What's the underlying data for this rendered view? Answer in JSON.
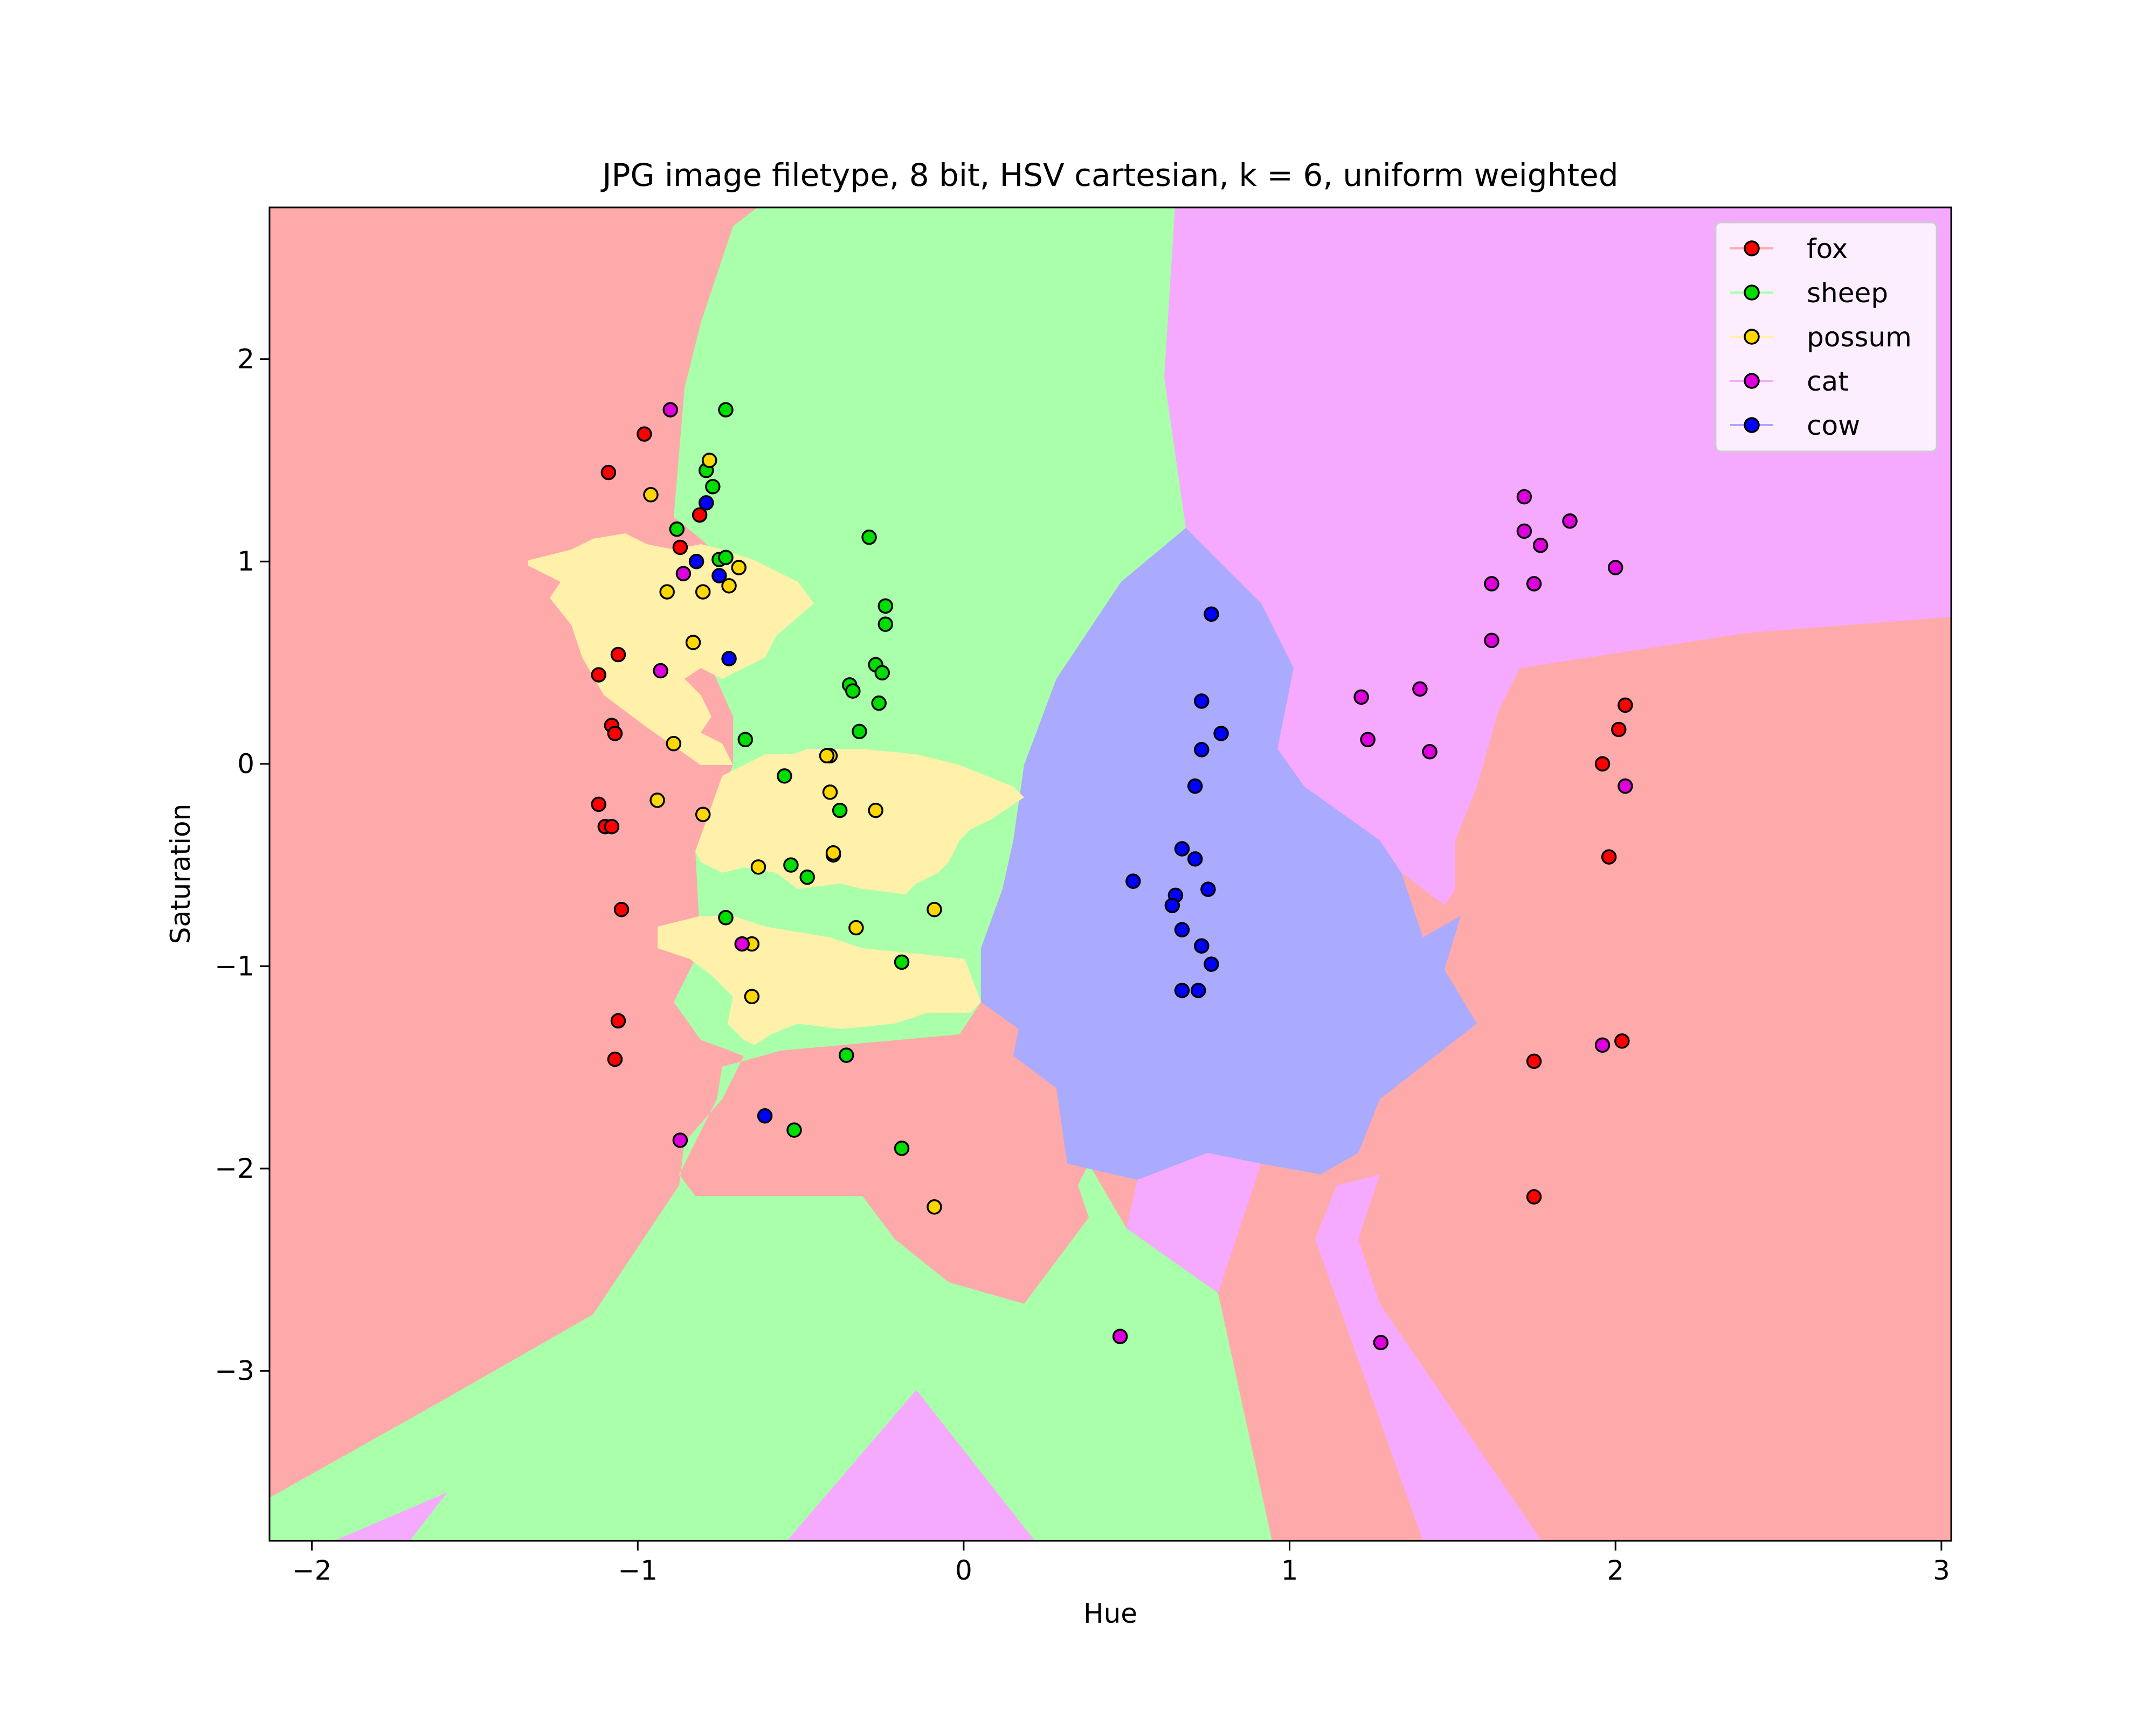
{
  "chart_data": {
    "type": "scatter",
    "title": "JPG image filetype, 8 bit, HSV cartesian, k = 6, uniform weighted",
    "xlabel": "Hue",
    "ylabel": "Saturation",
    "xlim": [
      -2.13,
      3.03
    ],
    "ylim": [
      -3.84,
      2.75
    ],
    "xticks": [
      -2,
      -1,
      0,
      1,
      2,
      3
    ],
    "yticks": [
      -3,
      -2,
      -1,
      0,
      1,
      2
    ],
    "xtick_labels": [
      "−2",
      "−1",
      "0",
      "1",
      "2",
      "3"
    ],
    "ytick_labels": [
      "−3",
      "−2",
      "−1",
      "0",
      "1",
      "2"
    ],
    "grid": false,
    "legend_position": "top-right",
    "background": "k-NN decision regions (k = 6) shaded by class",
    "series": [
      {
        "name": "fox",
        "color": "#ff0000",
        "region_color": "#ffaaaa",
        "points": [
          [
            -0.98,
            1.63
          ],
          [
            -1.09,
            1.44
          ],
          [
            -0.81,
            1.23
          ],
          [
            -0.87,
            1.07
          ],
          [
            -1.06,
            0.54
          ],
          [
            -1.12,
            0.44
          ],
          [
            -1.08,
            0.19
          ],
          [
            -1.07,
            0.15
          ],
          [
            -1.12,
            -0.2
          ],
          [
            -1.1,
            -0.31
          ],
          [
            -1.08,
            -0.31
          ],
          [
            -1.05,
            -0.72
          ],
          [
            -1.06,
            -1.27
          ],
          [
            -1.07,
            -1.46
          ],
          [
            2.03,
            0.29
          ],
          [
            2.01,
            0.17
          ],
          [
            1.96,
            0.0
          ],
          [
            1.98,
            -0.46
          ],
          [
            2.02,
            -1.37
          ],
          [
            1.75,
            -1.47
          ],
          [
            1.75,
            -2.14
          ]
        ]
      },
      {
        "name": "sheep",
        "color": "#00dd00",
        "region_color": "#aaffaa",
        "points": [
          [
            -0.73,
            1.75
          ],
          [
            -0.79,
            1.45
          ],
          [
            -0.77,
            1.37
          ],
          [
            -0.88,
            1.16
          ],
          [
            -0.75,
            1.01
          ],
          [
            -0.73,
            1.02
          ],
          [
            -0.29,
            1.12
          ],
          [
            -0.24,
            0.78
          ],
          [
            -0.24,
            0.69
          ],
          [
            -0.27,
            0.49
          ],
          [
            -0.25,
            0.45
          ],
          [
            -0.35,
            0.39
          ],
          [
            -0.34,
            0.36
          ],
          [
            -0.26,
            0.3
          ],
          [
            -0.32,
            0.16
          ],
          [
            -0.67,
            0.12
          ],
          [
            -0.55,
            -0.06
          ],
          [
            -0.38,
            -0.23
          ],
          [
            -0.4,
            -0.45
          ],
          [
            -0.53,
            -0.5
          ],
          [
            -0.48,
            -0.56
          ],
          [
            -0.73,
            -0.76
          ],
          [
            -0.19,
            -0.98
          ],
          [
            -0.36,
            -1.44
          ],
          [
            -0.52,
            -1.81
          ],
          [
            -0.19,
            -1.9
          ]
        ]
      },
      {
        "name": "possum",
        "color": "#ffd700",
        "region_color": "#fff0aa",
        "points": [
          [
            -0.78,
            1.5
          ],
          [
            -0.96,
            1.33
          ],
          [
            -0.69,
            0.97
          ],
          [
            -0.72,
            0.88
          ],
          [
            -0.91,
            0.85
          ],
          [
            -0.8,
            0.85
          ],
          [
            -0.83,
            0.6
          ],
          [
            -0.89,
            0.1
          ],
          [
            -0.41,
            0.04
          ],
          [
            -0.42,
            0.04
          ],
          [
            -0.94,
            -0.18
          ],
          [
            -0.8,
            -0.25
          ],
          [
            -0.41,
            -0.14
          ],
          [
            -0.27,
            -0.23
          ],
          [
            -0.4,
            -0.44
          ],
          [
            -0.63,
            -0.51
          ],
          [
            -0.33,
            -0.81
          ],
          [
            -0.09,
            -0.72
          ],
          [
            -0.65,
            -0.89
          ],
          [
            -0.65,
            -1.15
          ],
          [
            -0.09,
            -2.19
          ]
        ]
      },
      {
        "name": "cat",
        "color": "#dd00dd",
        "region_color": "#f5aaff",
        "points": [
          [
            -0.9,
            1.75
          ],
          [
            -0.86,
            0.94
          ],
          [
            -0.93,
            0.46
          ],
          [
            -0.68,
            -0.89
          ],
          [
            -0.87,
            -1.86
          ],
          [
            0.48,
            -2.83
          ],
          [
            1.28,
            -2.86
          ],
          [
            1.72,
            1.32
          ],
          [
            1.72,
            1.15
          ],
          [
            1.86,
            1.2
          ],
          [
            1.77,
            1.08
          ],
          [
            2.0,
            0.97
          ],
          [
            1.62,
            0.89
          ],
          [
            1.75,
            0.89
          ],
          [
            1.62,
            0.61
          ],
          [
            1.4,
            0.37
          ],
          [
            1.22,
            0.33
          ],
          [
            1.24,
            0.12
          ],
          [
            1.43,
            0.06
          ],
          [
            2.03,
            -0.11
          ],
          [
            1.96,
            -1.39
          ]
        ]
      },
      {
        "name": "cow",
        "color": "#0000ff",
        "region_color": "#aaaaff",
        "points": [
          [
            -0.79,
            1.29
          ],
          [
            -0.82,
            1.0
          ],
          [
            -0.75,
            0.93
          ],
          [
            -0.72,
            0.52
          ],
          [
            0.76,
            0.74
          ],
          [
            0.73,
            0.31
          ],
          [
            0.79,
            0.15
          ],
          [
            0.73,
            0.07
          ],
          [
            0.71,
            -0.11
          ],
          [
            0.67,
            -0.42
          ],
          [
            0.71,
            -0.47
          ],
          [
            0.52,
            -0.58
          ],
          [
            0.65,
            -0.65
          ],
          [
            0.75,
            -0.62
          ],
          [
            0.64,
            -0.7
          ],
          [
            0.67,
            -0.82
          ],
          [
            0.73,
            -0.9
          ],
          [
            0.76,
            -0.99
          ],
          [
            0.67,
            -1.12
          ],
          [
            0.72,
            -1.12
          ],
          [
            -0.61,
            -1.74
          ]
        ]
      }
    ]
  }
}
